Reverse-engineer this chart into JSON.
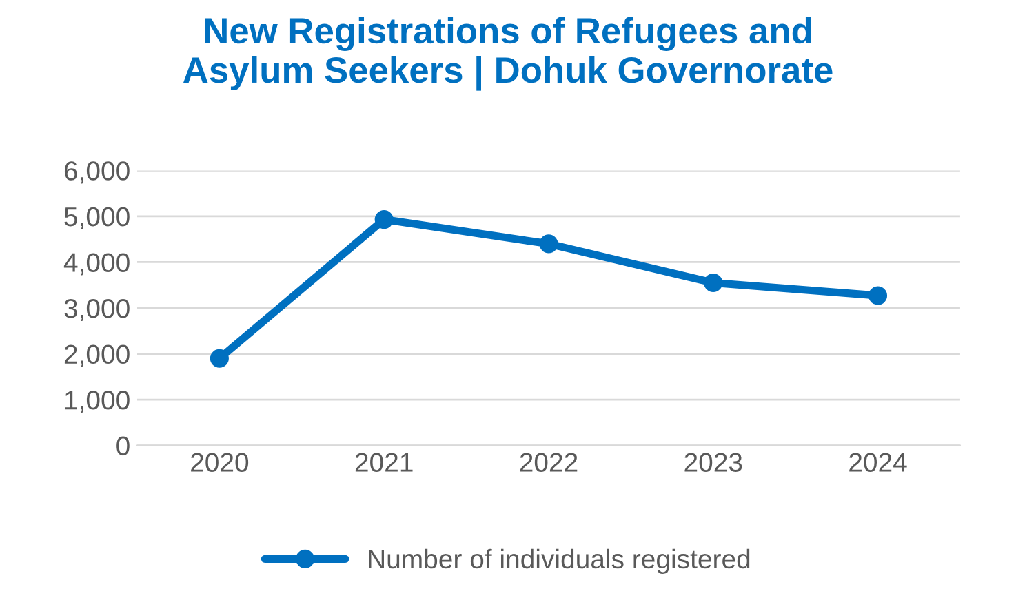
{
  "chart_data": {
    "type": "line",
    "title": "New Registrations of Refugees and\nAsylum Seekers | Dohuk Governorate",
    "categories": [
      "2020",
      "2021",
      "2022",
      "2023",
      "2024"
    ],
    "series": [
      {
        "name": "Number of individuals registered",
        "color": "#0070c0",
        "values": [
          1900,
          4930,
          4400,
          3550,
          3270
        ]
      }
    ],
    "ylim": [
      0,
      6000
    ],
    "yticks": [
      {
        "value": 0,
        "label": "0"
      },
      {
        "value": 1000,
        "label": "1,000"
      },
      {
        "value": 2000,
        "label": "2,000"
      },
      {
        "value": 3000,
        "label": "3,000"
      },
      {
        "value": 4000,
        "label": "4,000"
      },
      {
        "value": 5000,
        "label": "5,000"
      },
      {
        "value": 6000,
        "label": "6,000"
      }
    ],
    "grid": "y",
    "legend": "bottom",
    "marker": "circle",
    "line_style": "solid"
  }
}
